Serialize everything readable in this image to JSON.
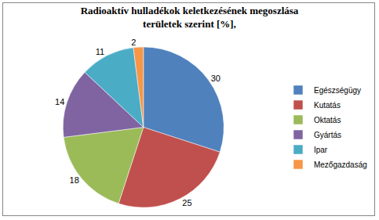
{
  "chart_data": {
    "type": "pie",
    "title": "Radioaktív hulladékok keletkezésének megoszlása\nterületek szerint [%],",
    "categories": [
      "Egészségügy",
      "Kutatás",
      "Oktatás",
      "Gyártás",
      "Ipar",
      "Mezőgazdaság"
    ],
    "values": [
      30,
      25,
      18,
      14,
      11,
      2
    ],
    "colors": [
      "#4f81bd",
      "#c0504d",
      "#9bbb59",
      "#8064a2",
      "#4bacc6",
      "#f79646"
    ],
    "data_labels": true,
    "legend": "right"
  }
}
